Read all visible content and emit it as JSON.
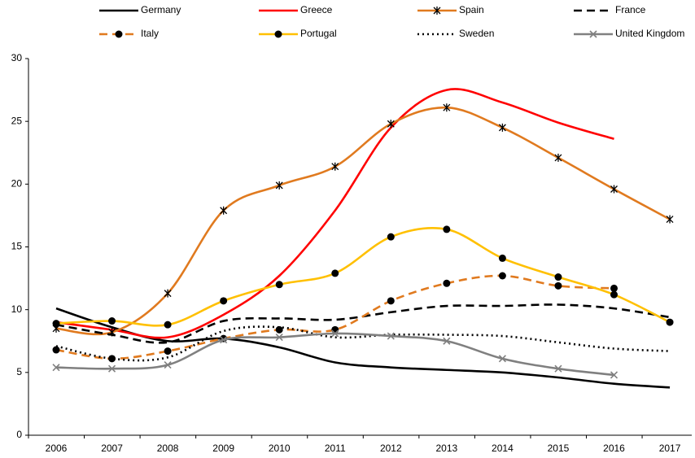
{
  "chart_data": {
    "type": "line",
    "categories": [
      "2006",
      "2007",
      "2008",
      "2009",
      "2010",
      "2011",
      "2012",
      "2013",
      "2014",
      "2015",
      "2016",
      "2017"
    ],
    "ylim": [
      0,
      30
    ],
    "yticks": [
      0,
      5,
      10,
      15,
      20,
      25,
      30
    ],
    "grid": false,
    "legend": "top",
    "series": [
      {
        "name": "Germany",
        "color": "#000000",
        "dash": "solid",
        "marker": "none",
        "values": [
          10.1,
          8.6,
          7.5,
          7.7,
          7.0,
          5.8,
          5.4,
          5.2,
          5.0,
          4.6,
          4.1,
          3.8
        ]
      },
      {
        "name": "Greece",
        "color": "#ff0000",
        "dash": "solid",
        "marker": "none",
        "values": [
          9.0,
          8.4,
          7.8,
          9.6,
          12.7,
          17.9,
          24.5,
          27.5,
          26.5,
          24.9,
          23.6,
          null
        ]
      },
      {
        "name": "Spain",
        "color": "#e07a1f",
        "dash": "solid",
        "marker": "star",
        "values": [
          8.5,
          8.2,
          11.3,
          17.9,
          19.9,
          21.4,
          24.8,
          26.1,
          24.5,
          22.1,
          19.6,
          17.2
        ]
      },
      {
        "name": "France",
        "color": "#000000",
        "dash": "dash",
        "marker": "none",
        "values": [
          8.8,
          8.0,
          7.4,
          9.1,
          9.3,
          9.2,
          9.8,
          10.3,
          10.3,
          10.4,
          10.1,
          9.4
        ]
      },
      {
        "name": "Italy",
        "color": "#e07a1f",
        "dash": "dash",
        "marker": "dot",
        "values": [
          6.8,
          6.1,
          6.7,
          7.7,
          8.4,
          8.4,
          10.7,
          12.1,
          12.7,
          11.9,
          11.7,
          null
        ]
      },
      {
        "name": "Portugal",
        "color": "#ffc000",
        "dash": "solid",
        "marker": "dot",
        "values": [
          8.9,
          9.1,
          8.8,
          10.7,
          12.0,
          12.9,
          15.8,
          16.4,
          14.1,
          12.6,
          11.2,
          9.0
        ]
      },
      {
        "name": "Sweden",
        "color": "#000000",
        "dash": "dot",
        "marker": "none",
        "values": [
          7.1,
          6.1,
          6.2,
          8.3,
          8.6,
          7.8,
          8.0,
          8.0,
          7.9,
          7.4,
          6.9,
          6.7
        ]
      },
      {
        "name": "United Kingdom",
        "color": "#808080",
        "dash": "solid",
        "marker": "x",
        "values": [
          5.4,
          5.3,
          5.6,
          7.6,
          7.8,
          8.1,
          7.9,
          7.5,
          6.1,
          5.3,
          4.8,
          null
        ]
      }
    ]
  }
}
